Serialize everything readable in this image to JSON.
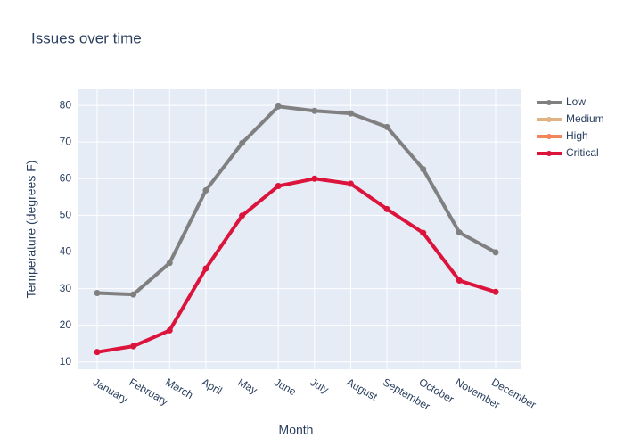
{
  "chart_data": {
    "type": "line",
    "title": "Issues over time",
    "x_label": "Month",
    "y_label": "Temperature (degrees F)",
    "categories": [
      "January",
      "February",
      "March",
      "April",
      "May",
      "June",
      "July",
      "August",
      "September",
      "October",
      "November",
      "December"
    ],
    "series": [
      {
        "name": "Low",
        "color": "#808080",
        "values": [
          28.8,
          28.4,
          37.0,
          56.8,
          69.7,
          79.7,
          78.5,
          77.8,
          74.1,
          62.6,
          45.3,
          39.9
        ]
      },
      {
        "name": "Medium",
        "color": "#e0b384",
        "values": [
          null,
          null,
          null,
          null,
          null,
          null,
          null,
          null,
          null,
          null,
          null,
          null
        ]
      },
      {
        "name": "High",
        "color": "#f4845a",
        "values": [
          null,
          null,
          null,
          null,
          null,
          null,
          null,
          null,
          null,
          null,
          null,
          null
        ]
      },
      {
        "name": "Critical",
        "color": "#dc143c",
        "values": [
          12.7,
          14.3,
          18.6,
          35.5,
          49.9,
          58.0,
          60.0,
          58.6,
          51.7,
          45.2,
          32.2,
          29.1
        ]
      }
    ],
    "ylim": [
      8,
      84.4
    ],
    "yticks": [
      10,
      20,
      30,
      40,
      50,
      60,
      70,
      80
    ],
    "grid": true,
    "legend": "right"
  }
}
